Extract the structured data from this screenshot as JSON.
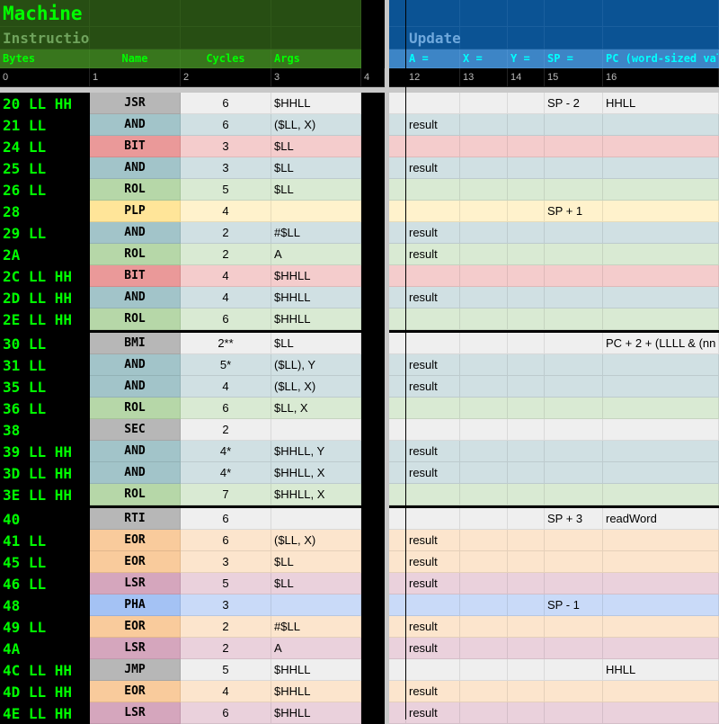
{
  "header": {
    "title": "Machine Code",
    "left_subtitle": "Instructions",
    "right_subtitle": "Update Registers",
    "columns": [
      "Bytes",
      "Name",
      "Cycles",
      "Args",
      "A =",
      "X =",
      "Y =",
      "SP =",
      "PC (word-sized val"
    ],
    "indices": [
      "0",
      "1",
      "2",
      "3",
      "4",
      "12",
      "13",
      "14",
      "15",
      "16"
    ]
  },
  "colors": {
    "gray": {
      "name": "#b7b7b7",
      "row": "#efefef"
    },
    "and": {
      "name": "#a2c4c9",
      "row": "#d0e0e3"
    },
    "bit": {
      "name": "#ea9999",
      "row": "#f4cccc"
    },
    "rol": {
      "name": "#b6d7a8",
      "row": "#d9ead3"
    },
    "plp": {
      "name": "#ffe599",
      "row": "#fff2cc"
    },
    "eor": {
      "name": "#f9cb9c",
      "row": "#fce5cd"
    },
    "lsr": {
      "name": "#d5a6bd",
      "row": "#ead1dc"
    },
    "pha": {
      "name": "#a4c2f4",
      "row": "#c9daf8"
    }
  },
  "groups": [
    {
      "rows": [
        {
          "bytes": "20 LL HH",
          "name": "JSR",
          "cycles": "6",
          "args": "$HHLL",
          "a": "",
          "sp": "SP - 2",
          "pc": "HHLL",
          "kind": "gray"
        },
        {
          "bytes": "21 LL",
          "name": "AND",
          "cycles": "6",
          "args": "($LL, X)",
          "a": "result",
          "sp": "",
          "pc": "",
          "kind": "and"
        },
        {
          "bytes": "24 LL",
          "name": "BIT",
          "cycles": "3",
          "args": "$LL",
          "a": "",
          "sp": "",
          "pc": "",
          "kind": "bit"
        },
        {
          "bytes": "25 LL",
          "name": "AND",
          "cycles": "3",
          "args": "$LL",
          "a": "result",
          "sp": "",
          "pc": "",
          "kind": "and"
        },
        {
          "bytes": "26 LL",
          "name": "ROL",
          "cycles": "5",
          "args": "$LL",
          "a": "",
          "sp": "",
          "pc": "",
          "kind": "rol"
        },
        {
          "bytes": "28",
          "name": "PLP",
          "cycles": "4",
          "args": "",
          "a": "",
          "sp": "SP + 1",
          "pc": "",
          "kind": "plp"
        },
        {
          "bytes": "29 LL",
          "name": "AND",
          "cycles": "2",
          "args": "#$LL",
          "a": "result",
          "sp": "",
          "pc": "",
          "kind": "and"
        },
        {
          "bytes": "2A",
          "name": "ROL",
          "cycles": "2",
          "args": "A",
          "a": "result",
          "sp": "",
          "pc": "",
          "kind": "rol"
        },
        {
          "bytes": "2C LL HH",
          "name": "BIT",
          "cycles": "4",
          "args": "$HHLL",
          "a": "",
          "sp": "",
          "pc": "",
          "kind": "bit"
        },
        {
          "bytes": "2D LL HH",
          "name": "AND",
          "cycles": "4",
          "args": "$HHLL",
          "a": "result",
          "sp": "",
          "pc": "",
          "kind": "and"
        },
        {
          "bytes": "2E LL HH",
          "name": "ROL",
          "cycles": "6",
          "args": "$HHLL",
          "a": "",
          "sp": "",
          "pc": "",
          "kind": "rol"
        }
      ]
    },
    {
      "rows": [
        {
          "bytes": "30 LL",
          "name": "BMI",
          "cycles": "2**",
          "args": "$LL",
          "a": "",
          "sp": "",
          "pc": "PC + 2 + (LLLL & (nn",
          "kind": "gray"
        },
        {
          "bytes": "31 LL",
          "name": "AND",
          "cycles": "5*",
          "args": "($LL), Y",
          "a": "result",
          "sp": "",
          "pc": "",
          "kind": "and"
        },
        {
          "bytes": "35 LL",
          "name": "AND",
          "cycles": "4",
          "args": "($LL, X)",
          "a": "result",
          "sp": "",
          "pc": "",
          "kind": "and"
        },
        {
          "bytes": "36 LL",
          "name": "ROL",
          "cycles": "6",
          "args": "$LL, X",
          "a": "",
          "sp": "",
          "pc": "",
          "kind": "rol"
        },
        {
          "bytes": "38",
          "name": "SEC",
          "cycles": "2",
          "args": "",
          "a": "",
          "sp": "",
          "pc": "",
          "kind": "gray"
        },
        {
          "bytes": "39 LL HH",
          "name": "AND",
          "cycles": "4*",
          "args": "$HHLL, Y",
          "a": "result",
          "sp": "",
          "pc": "",
          "kind": "and"
        },
        {
          "bytes": "3D LL HH",
          "name": "AND",
          "cycles": "4*",
          "args": "$HHLL, X",
          "a": "result",
          "sp": "",
          "pc": "",
          "kind": "and"
        },
        {
          "bytes": "3E LL HH",
          "name": "ROL",
          "cycles": "7",
          "args": "$HHLL, X",
          "a": "",
          "sp": "",
          "pc": "",
          "kind": "rol"
        }
      ]
    },
    {
      "rows": [
        {
          "bytes": "40",
          "name": "RTI",
          "cycles": "6",
          "args": "",
          "a": "",
          "sp": "SP + 3",
          "pc": "readWord",
          "kind": "gray"
        },
        {
          "bytes": "41 LL",
          "name": "EOR",
          "cycles": "6",
          "args": "($LL, X)",
          "a": "result",
          "sp": "",
          "pc": "",
          "kind": "eor"
        },
        {
          "bytes": "45 LL",
          "name": "EOR",
          "cycles": "3",
          "args": "$LL",
          "a": "result",
          "sp": "",
          "pc": "",
          "kind": "eor"
        },
        {
          "bytes": "46 LL",
          "name": "LSR",
          "cycles": "5",
          "args": "$LL",
          "a": "result",
          "sp": "",
          "pc": "",
          "kind": "lsr"
        },
        {
          "bytes": "48",
          "name": "PHA",
          "cycles": "3",
          "args": "",
          "a": "",
          "sp": "SP - 1",
          "pc": "",
          "kind": "pha"
        },
        {
          "bytes": "49 LL",
          "name": "EOR",
          "cycles": "2",
          "args": "#$LL",
          "a": "result",
          "sp": "",
          "pc": "",
          "kind": "eor"
        },
        {
          "bytes": "4A",
          "name": "LSR",
          "cycles": "2",
          "args": "A",
          "a": "result",
          "sp": "",
          "pc": "",
          "kind": "lsr"
        },
        {
          "bytes": "4C LL HH",
          "name": "JMP",
          "cycles": "5",
          "args": "$HHLL",
          "a": "",
          "sp": "",
          "pc": "HHLL",
          "kind": "gray"
        },
        {
          "bytes": "4D LL HH",
          "name": "EOR",
          "cycles": "4",
          "args": "$HHLL",
          "a": "result",
          "sp": "",
          "pc": "",
          "kind": "eor"
        },
        {
          "bytes": "4E LL HH",
          "name": "LSR",
          "cycles": "6",
          "args": "$HHLL",
          "a": "result",
          "sp": "",
          "pc": "",
          "kind": "lsr"
        }
      ]
    }
  ]
}
